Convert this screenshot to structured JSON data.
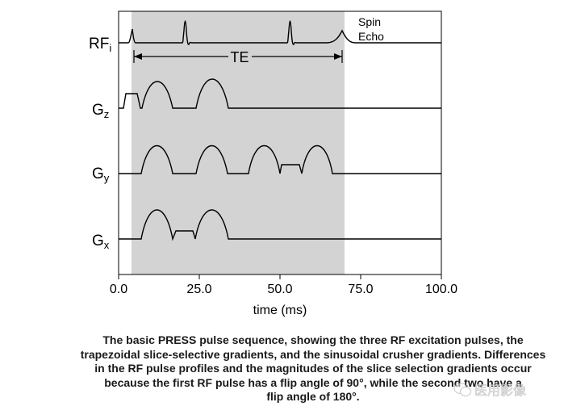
{
  "colors": {
    "shade": "#d3d3d3",
    "line": "#000000",
    "text": "#000000"
  },
  "rows": [
    {
      "id": "rf",
      "label": "RF",
      "sub": "i"
    },
    {
      "id": "gz",
      "label": "G",
      "sub": "z"
    },
    {
      "id": "gy",
      "label": "G",
      "sub": "y"
    },
    {
      "id": "gx",
      "label": "G",
      "sub": "x"
    }
  ],
  "annotations": {
    "spin": "Spin",
    "echo": "Echo",
    "te": "TE"
  },
  "axis": {
    "xlabel": "time (ms)",
    "ticks": [
      "0.0",
      "25.0",
      "50.0",
      "75.0",
      "100.0"
    ]
  },
  "caption": {
    "lines": [
      "The basic PRESS pulse sequence, showing the three RF excitation pulses, the",
      "trapezoidal slice-selective gradients, and the sinusoidal crusher gradients. Differences",
      "in the RF pulse profiles and the magnitudes of the slice selection gradients occur",
      "because the first RF pulse has a flip angle of 90°, while the second two have a",
      "flip angle of 180°."
    ]
  },
  "watermark": {
    "text": "医用影像",
    "icon": "wechat-logo-icon"
  }
}
